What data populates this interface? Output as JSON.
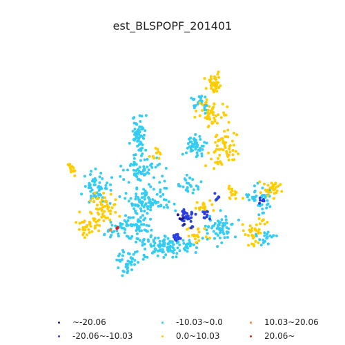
{
  "title": "est_BLSPOPF_201401",
  "legend": {
    "items": [
      {
        "label": "~-20.06",
        "color": "#1a1a8c"
      },
      {
        "label": "-20.06~-10.03",
        "color": "#2a3fe0"
      },
      {
        "label": "-10.03~0.0",
        "color": "#33ccf2"
      },
      {
        "label": "0.0~10.03",
        "color": "#ffcc00"
      },
      {
        "label": "10.03~20.06",
        "color": "#f08030"
      },
      {
        "label": "20.06~",
        "color": "#e02020"
      }
    ]
  },
  "colors": {
    "very_low": "#1a1a8c",
    "low": "#2a3fe0",
    "below_zero": "#33ccf2",
    "above_zero": "#ffcc00",
    "high": "#f08030",
    "very_high": "#e02020"
  }
}
